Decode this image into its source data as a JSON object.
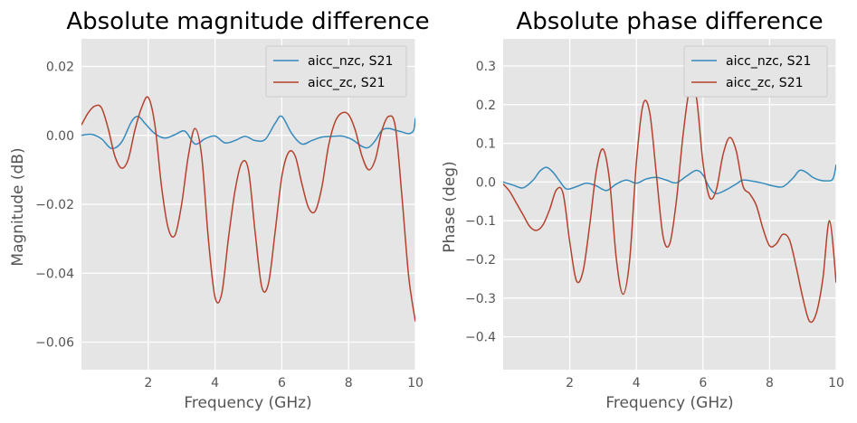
{
  "chart_data": [
    {
      "type": "line",
      "title": "Absolute magnitude difference",
      "xlabel": "Frequency (GHz)",
      "ylabel": "Magnitude (dB)",
      "xlim": [
        0,
        10
      ],
      "ylim": [
        -0.068,
        0.028
      ],
      "xticks": [
        2,
        4,
        6,
        8,
        10
      ],
      "xtick_labels": [
        "2",
        "4",
        "6",
        "8",
        "10"
      ],
      "yticks": [
        0.02,
        0.0,
        -0.02,
        -0.04,
        -0.06
      ],
      "ytick_labels": [
        "0.02",
        "0.00",
        "−0.02",
        "−0.04",
        "−0.06"
      ],
      "grid": true,
      "legend": "top-right",
      "series": [
        {
          "name": "aicc_nzc, S21",
          "color": "#348abd",
          "x": [
            0,
            0.3,
            0.6,
            0.9,
            1.2,
            1.5,
            1.7,
            1.9,
            2.2,
            2.5,
            2.8,
            3.1,
            3.4,
            3.7,
            4.0,
            4.3,
            4.6,
            4.9,
            5.2,
            5.5,
            5.8,
            6.0,
            6.3,
            6.6,
            6.9,
            7.2,
            7.5,
            7.8,
            8.1,
            8.4,
            8.6,
            8.8,
            9.0,
            9.2,
            9.4,
            9.6,
            9.8,
            9.95,
            10.0
          ],
          "y": [
            0.0,
            0.0003,
            -0.001,
            -0.0038,
            -0.002,
            0.004,
            0.0055,
            0.0035,
            0.0005,
            -0.0008,
            0.0002,
            0.0012,
            -0.0025,
            -0.001,
            -0.0002,
            -0.0022,
            -0.0015,
            -0.0003,
            -0.0015,
            -0.0012,
            0.0035,
            0.0055,
            0.0005,
            -0.0025,
            -0.0015,
            -0.0005,
            -0.0003,
            -0.0002,
            -0.0012,
            -0.0032,
            -0.0035,
            -0.0015,
            0.0015,
            0.002,
            0.0015,
            0.001,
            0.0005,
            0.0015,
            0.005
          ]
        },
        {
          "name": "aicc_zc, S21",
          "color": "#b5412c",
          "x": [
            0,
            0.2,
            0.4,
            0.6,
            0.8,
            1.0,
            1.2,
            1.4,
            1.6,
            1.8,
            2.0,
            2.2,
            2.4,
            2.6,
            2.8,
            3.0,
            3.2,
            3.4,
            3.6,
            3.8,
            4.0,
            4.2,
            4.4,
            4.6,
            4.8,
            5.0,
            5.2,
            5.4,
            5.6,
            5.8,
            6.0,
            6.2,
            6.4,
            6.6,
            6.8,
            7.0,
            7.2,
            7.4,
            7.6,
            7.8,
            8.0,
            8.2,
            8.4,
            8.6,
            8.8,
            9.0,
            9.2,
            9.4,
            9.6,
            9.8,
            10.0
          ],
          "y": [
            0.003,
            0.0065,
            0.0085,
            0.008,
            0.002,
            -0.006,
            -0.0095,
            -0.007,
            0.0015,
            0.008,
            0.011,
            0.003,
            -0.015,
            -0.027,
            -0.029,
            -0.02,
            -0.006,
            0.002,
            -0.006,
            -0.03,
            -0.047,
            -0.046,
            -0.03,
            -0.016,
            -0.008,
            -0.01,
            -0.028,
            -0.044,
            -0.043,
            -0.028,
            -0.012,
            -0.005,
            -0.006,
            -0.014,
            -0.021,
            -0.022,
            -0.015,
            -0.003,
            0.004,
            0.0065,
            0.006,
            0.0015,
            -0.006,
            -0.01,
            -0.007,
            0.0015,
            0.0055,
            0.0025,
            -0.018,
            -0.041,
            -0.054
          ]
        }
      ]
    },
    {
      "type": "line",
      "title": "Absolute phase difference",
      "xlabel": "Frequency (GHz)",
      "ylabel": "Phase (deg)",
      "xlim": [
        0,
        10
      ],
      "ylim": [
        -0.485,
        0.37
      ],
      "xticks": [
        2,
        4,
        6,
        8,
        10
      ],
      "xtick_labels": [
        "2",
        "4",
        "6",
        "8",
        "10"
      ],
      "yticks": [
        0.3,
        0.2,
        0.1,
        0.0,
        -0.1,
        -0.2,
        -0.3,
        -0.4
      ],
      "ytick_labels": [
        "0.3",
        "0.2",
        "0.1",
        "0.0",
        "−0.1",
        "−0.2",
        "−0.3",
        "−0.4"
      ],
      "grid": true,
      "legend": "top-right",
      "series": [
        {
          "name": "aicc_nzc, S21",
          "color": "#348abd",
          "x": [
            0,
            0.3,
            0.6,
            0.9,
            1.1,
            1.3,
            1.5,
            1.7,
            1.9,
            2.2,
            2.5,
            2.8,
            3.1,
            3.4,
            3.7,
            4.0,
            4.3,
            4.6,
            4.9,
            5.2,
            5.5,
            5.8,
            6.0,
            6.2,
            6.4,
            6.7,
            7.0,
            7.2,
            7.5,
            7.8,
            8.1,
            8.4,
            8.7,
            8.9,
            9.1,
            9.3,
            9.5,
            9.7,
            9.9,
            10.0
          ],
          "y": [
            0.0,
            -0.008,
            -0.015,
            0.005,
            0.028,
            0.038,
            0.025,
            0.002,
            -0.018,
            -0.012,
            -0.003,
            -0.01,
            -0.022,
            -0.005,
            0.005,
            -0.003,
            0.008,
            0.012,
            0.005,
            -0.002,
            0.015,
            0.03,
            0.018,
            -0.015,
            -0.03,
            -0.02,
            -0.005,
            0.005,
            0.002,
            -0.003,
            -0.01,
            -0.012,
            0.01,
            0.03,
            0.025,
            0.012,
            0.005,
            0.003,
            0.008,
            0.045
          ]
        },
        {
          "name": "aicc_zc, S21",
          "color": "#b5412c",
          "x": [
            0,
            0.2,
            0.4,
            0.6,
            0.8,
            1.0,
            1.2,
            1.4,
            1.6,
            1.8,
            2.0,
            2.2,
            2.4,
            2.6,
            2.8,
            3.0,
            3.2,
            3.4,
            3.6,
            3.8,
            4.0,
            4.2,
            4.4,
            4.6,
            4.8,
            5.0,
            5.2,
            5.4,
            5.6,
            5.8,
            6.0,
            6.2,
            6.4,
            6.6,
            6.8,
            7.0,
            7.2,
            7.4,
            7.6,
            7.8,
            8.0,
            8.2,
            8.4,
            8.6,
            8.8,
            9.0,
            9.2,
            9.4,
            9.6,
            9.8,
            10.0
          ],
          "y": [
            -0.005,
            -0.025,
            -0.055,
            -0.085,
            -0.115,
            -0.125,
            -0.11,
            -0.07,
            -0.02,
            -0.03,
            -0.155,
            -0.255,
            -0.23,
            -0.11,
            0.03,
            0.085,
            0.0,
            -0.2,
            -0.29,
            -0.2,
            0.05,
            0.2,
            0.18,
            0.02,
            -0.14,
            -0.16,
            -0.05,
            0.12,
            0.24,
            0.22,
            0.05,
            -0.04,
            -0.02,
            0.07,
            0.115,
            0.08,
            -0.01,
            -0.03,
            -0.06,
            -0.12,
            -0.165,
            -0.16,
            -0.135,
            -0.15,
            -0.22,
            -0.3,
            -0.36,
            -0.34,
            -0.25,
            -0.1,
            -0.26
          ]
        }
      ]
    }
  ]
}
